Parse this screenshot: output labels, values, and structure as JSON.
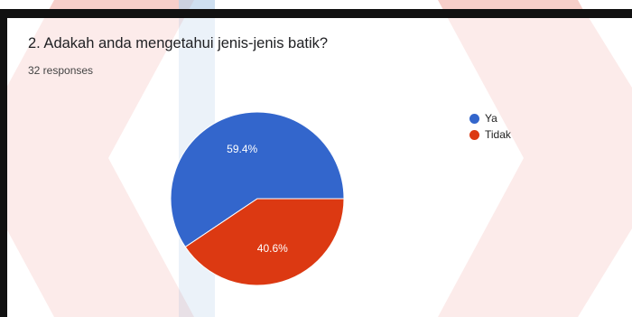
{
  "question": {
    "title": "2. Adakah anda mengetahui jenis-jenis batik?",
    "responses": "32 responses"
  },
  "colors": {
    "ya": "#3366cc",
    "tidak": "#dc3912",
    "watermark_red": "#f0a89e",
    "watermark_blue": "#b9d1ea"
  },
  "chart_data": {
    "type": "pie",
    "title": "2. Adakah anda mengetahui jenis-jenis batik?",
    "start_angle_deg": 0,
    "direction": "counterclockwise",
    "legend_position": "right",
    "slices": [
      {
        "label": "Ya",
        "value": 59.4,
        "display": "59.4%",
        "color": "#3366cc"
      },
      {
        "label": "Tidak",
        "value": 40.6,
        "display": "40.6%",
        "color": "#dc3912"
      }
    ]
  },
  "legend": {
    "items": [
      {
        "label": "Ya",
        "color": "#3366cc"
      },
      {
        "label": "Tidak",
        "color": "#dc3912"
      }
    ]
  }
}
